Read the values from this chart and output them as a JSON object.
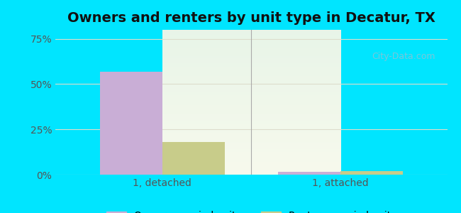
{
  "title": "Owners and renters by unit type in Decatur, TX",
  "categories": [
    "1, detached",
    "1, attached"
  ],
  "owner_values": [
    57.0,
    1.5
  ],
  "renter_values": [
    18.0,
    2.0
  ],
  "owner_color": "#c9aed6",
  "renter_color": "#c8cc8a",
  "yticks": [
    0,
    25,
    50,
    75
  ],
  "ytick_labels": [
    "0%",
    "25%",
    "50%",
    "75%"
  ],
  "ylim": [
    0,
    80
  ],
  "bar_width": 0.35,
  "title_fontsize": 14,
  "tick_fontsize": 10,
  "legend_fontsize": 10,
  "background_outer": "#00e5ff",
  "background_inner_top": "#e8f5e9",
  "background_inner_bottom": "#f5f5e8",
  "grid_color": "#ddddcc",
  "watermark_text": "City-Data.com",
  "watermark_color": "#aabbcc"
}
